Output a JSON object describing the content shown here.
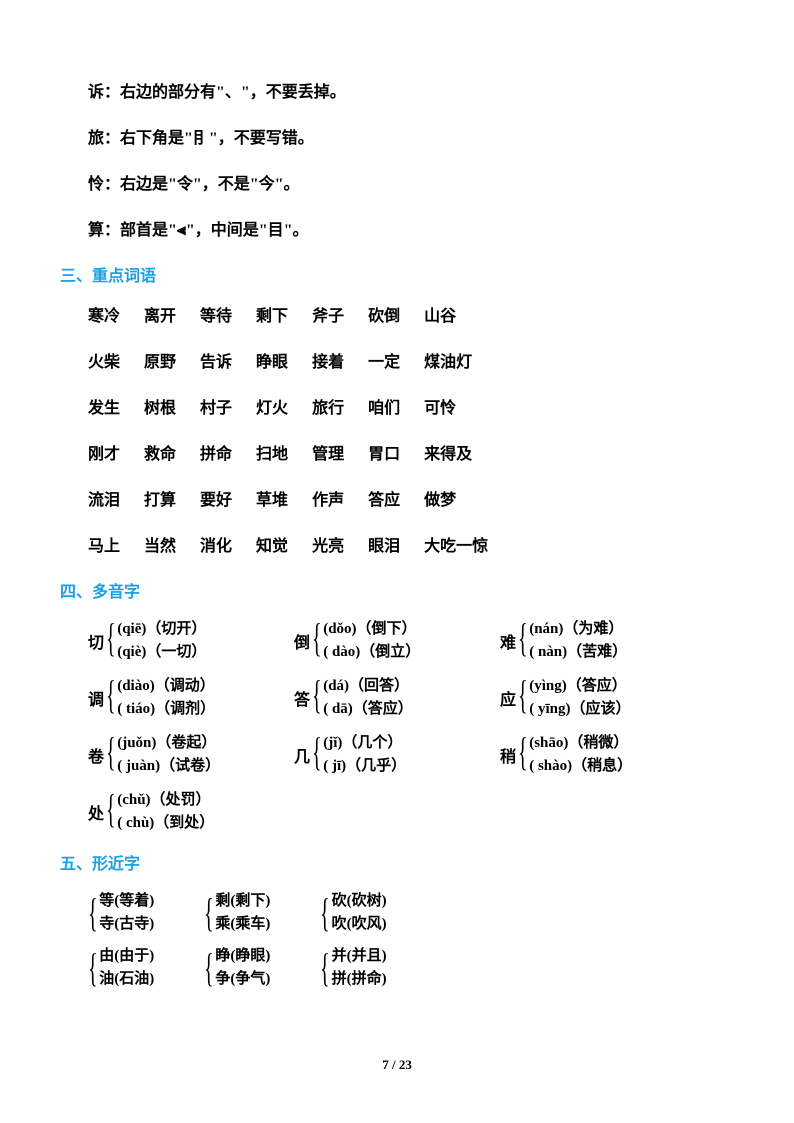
{
  "notes": [
    "诉：右边的部分有\"、\"，不要丢掉。",
    "旅：右下角是\"⺝\"，不要写错。",
    "怜：右边是\"令\"，不是\"今\"。",
    "算：部首是\"⫷\"，中间是\"目\"。"
  ],
  "section3": {
    "title": "三、重点词语",
    "lines": [
      [
        "寒冷",
        "离开",
        "等待",
        "剩下",
        "斧子",
        "砍倒",
        "山谷"
      ],
      [
        "火柴",
        "原野",
        "告诉",
        "睁眼",
        "接着",
        "一定",
        "煤油灯"
      ],
      [
        "发生",
        "树根",
        "村子",
        "灯火",
        "旅行",
        "咱们",
        "可怜"
      ],
      [
        "刚才",
        "救命",
        "拼命",
        "扫地",
        "管理",
        "胃口",
        "来得及"
      ],
      [
        "流泪",
        "打算",
        "要好",
        "草堆",
        "作声",
        "答应",
        "做梦"
      ],
      [
        "马上",
        "当然",
        "消化",
        "知觉",
        "光亮",
        "眼泪",
        "大吃一惊"
      ]
    ]
  },
  "section4": {
    "title": "四、多音字",
    "rows": [
      [
        {
          "char": "切",
          "r": [
            "(qiē)（切开）",
            "(qiè)（一切）"
          ]
        },
        {
          "char": "倒",
          "r": [
            "(dǒo)（倒下）",
            "( dào)（倒立）"
          ]
        },
        {
          "char": "难",
          "r": [
            "(nán)（为难）",
            "( nàn)（苦难）"
          ]
        }
      ],
      [
        {
          "char": "调",
          "r": [
            "(diào)（调动）",
            "( tiáo)（调剂）"
          ]
        },
        {
          "char": "答",
          "r": [
            "(dá)（回答）",
            "( dā)（答应）"
          ]
        },
        {
          "char": "应",
          "r": [
            "(yìng)（答应）",
            "( yīng)（应该）"
          ]
        }
      ],
      [
        {
          "char": "卷",
          "r": [
            "(juǒn)（卷起）",
            "( juàn)（试卷）"
          ]
        },
        {
          "char": "几",
          "r": [
            "(jǐ)（几个）",
            "( jī)（几乎）"
          ]
        },
        {
          "char": "稍",
          "r": [
            "(shāo)（稍微）",
            "( shào)（稍息）"
          ]
        }
      ],
      [
        {
          "char": "处",
          "r": [
            "(chǔ)（处罚）",
            "( chù)（到处）"
          ]
        }
      ]
    ]
  },
  "section5": {
    "title": "五、形近字",
    "rows": [
      [
        {
          "r": [
            "等(等着)",
            "寺(古寺)"
          ]
        },
        {
          "r": [
            "剩(剩下)",
            "乘(乘车)"
          ]
        },
        {
          "r": [
            "砍(砍树)",
            "吹(吹风)"
          ]
        }
      ],
      [
        {
          "r": [
            "由(由于)",
            "油(石油)"
          ]
        },
        {
          "r": [
            "睁(睁眼)",
            "争(争气)"
          ]
        },
        {
          "r": [
            "并(并且)",
            "拼(拼命)"
          ]
        }
      ]
    ]
  },
  "page": {
    "current": "7",
    "total": "23",
    "sep": " / "
  }
}
